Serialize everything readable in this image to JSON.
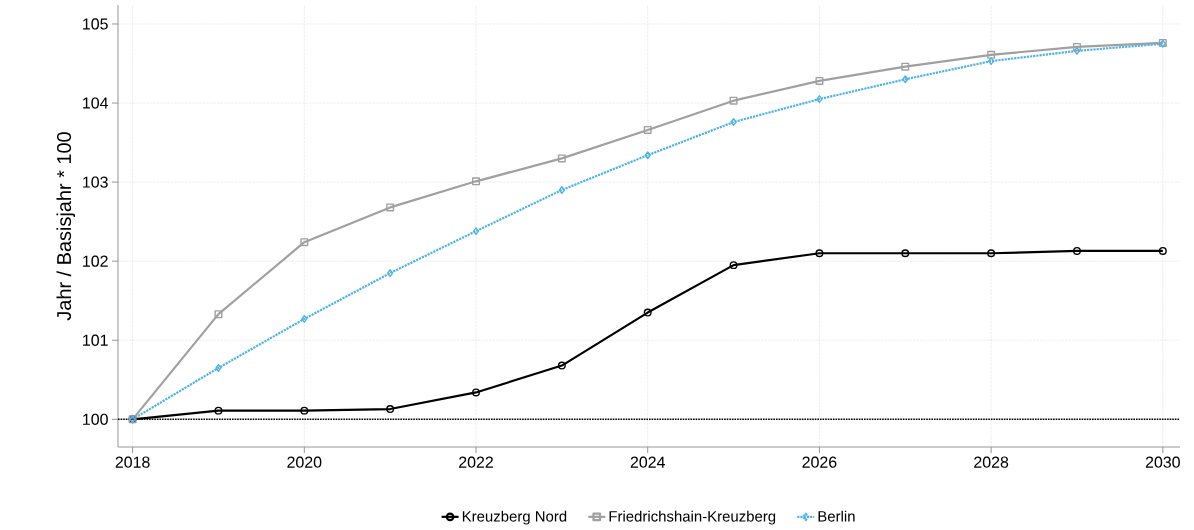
{
  "chart_data": {
    "type": "line",
    "ylabel": "Jahr / Basisjahr * 100",
    "x": [
      2018,
      2019,
      2020,
      2021,
      2022,
      2023,
      2024,
      2025,
      2026,
      2027,
      2028,
      2029,
      2030
    ],
    "series": [
      {
        "name": "Kreuzberg Nord",
        "color": "#000000",
        "marker": "circle",
        "line_style": "solid",
        "values": [
          100,
          100.11,
          100.11,
          100.13,
          100.34,
          100.68,
          101.35,
          101.95,
          102.1,
          102.1,
          102.1,
          102.13,
          102.13
        ]
      },
      {
        "name": "Friedrichshain-Kreuzberg",
        "color": "#a0a0a0",
        "marker": "square",
        "line_style": "solid",
        "values": [
          100,
          101.33,
          102.24,
          102.68,
          103.01,
          103.3,
          103.66,
          104.03,
          104.28,
          104.46,
          104.61,
          104.71,
          104.76
        ]
      },
      {
        "name": "Berlin",
        "color": "#4db3e6",
        "marker": "diamond",
        "line_style": "dotted",
        "values": [
          100,
          100.65,
          101.27,
          101.85,
          102.38,
          102.9,
          103.34,
          103.76,
          104.05,
          104.3,
          104.53,
          104.66,
          104.75
        ]
      }
    ],
    "xlim": [
      2017.83,
      2030.2
    ],
    "ylim": [
      99.65,
      105.24
    ],
    "xticks": [
      2018,
      2020,
      2022,
      2024,
      2026,
      2028,
      2030
    ],
    "yticks": [
      100,
      101,
      102,
      103,
      104,
      105
    ],
    "ref_lines": [
      {
        "axis": "y",
        "value": 100,
        "color": "#000000",
        "line_style": "dotted"
      }
    ],
    "grid": true,
    "legend": "bottom"
  }
}
